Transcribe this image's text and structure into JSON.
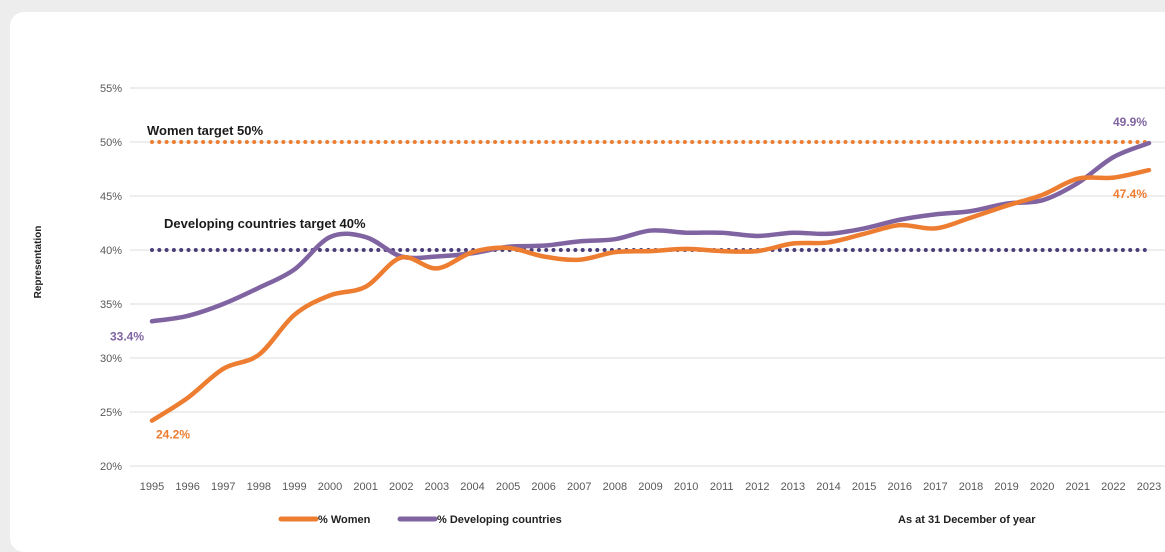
{
  "chart_data": {
    "type": "line",
    "x": [
      "1995",
      "1996",
      "1997",
      "1998",
      "1999",
      "2000",
      "2001",
      "2002",
      "2003",
      "2004",
      "2005",
      "2006",
      "2007",
      "2008",
      "2009",
      "2010",
      "2011",
      "2012",
      "2013",
      "2014",
      "2015",
      "2016",
      "2017",
      "2018",
      "2019",
      "2020",
      "2021",
      "2022",
      "2023"
    ],
    "series": [
      {
        "name": "% Women",
        "color": "#ed7d31",
        "values": [
          24.2,
          26.3,
          29.0,
          30.3,
          34.0,
          35.8,
          36.6,
          39.3,
          38.3,
          39.8,
          40.2,
          39.4,
          39.1,
          39.8,
          39.9,
          40.1,
          39.9,
          39.9,
          40.6,
          40.7,
          41.5,
          42.3,
          42.0,
          43.0,
          44.1,
          45.1,
          46.6,
          46.7,
          47.4
        ]
      },
      {
        "name": "% Developing countries",
        "color": "#8064a2",
        "values": [
          33.4,
          33.9,
          35.0,
          36.5,
          38.2,
          41.2,
          41.2,
          39.4,
          39.4,
          39.7,
          40.3,
          40.4,
          40.8,
          41.0,
          41.8,
          41.6,
          41.6,
          41.3,
          41.6,
          41.5,
          42.0,
          42.8,
          43.3,
          43.6,
          44.3,
          44.6,
          46.2,
          48.6,
          49.9
        ]
      }
    ],
    "targets": [
      {
        "label": "Women target 50%",
        "value": 50,
        "color": "#ed7d31"
      },
      {
        "label": "Developing countries target 40%",
        "value": 40,
        "color": "#4b3d78"
      }
    ],
    "data_labels": [
      {
        "text": "24.2%",
        "series": "% Women",
        "index": 0,
        "color": "#ed7d31"
      },
      {
        "text": "47.4%",
        "series": "% Women",
        "index": 28,
        "color": "#ed7d31"
      },
      {
        "text": "33.4%",
        "series": "% Developing countries",
        "index": 0,
        "color": "#8064a2"
      },
      {
        "text": "49.9%",
        "series": "% Developing countries",
        "index": 28,
        "color": "#8064a2"
      }
    ],
    "ylabel": "Representation",
    "xlabel": "",
    "yticks": [
      "20%",
      "25%",
      "30%",
      "35%",
      "40%",
      "45%",
      "50%",
      "55%"
    ],
    "ylim": [
      20,
      55
    ],
    "grid": true,
    "legend": "bottom",
    "note": "As at 31 December of year"
  }
}
